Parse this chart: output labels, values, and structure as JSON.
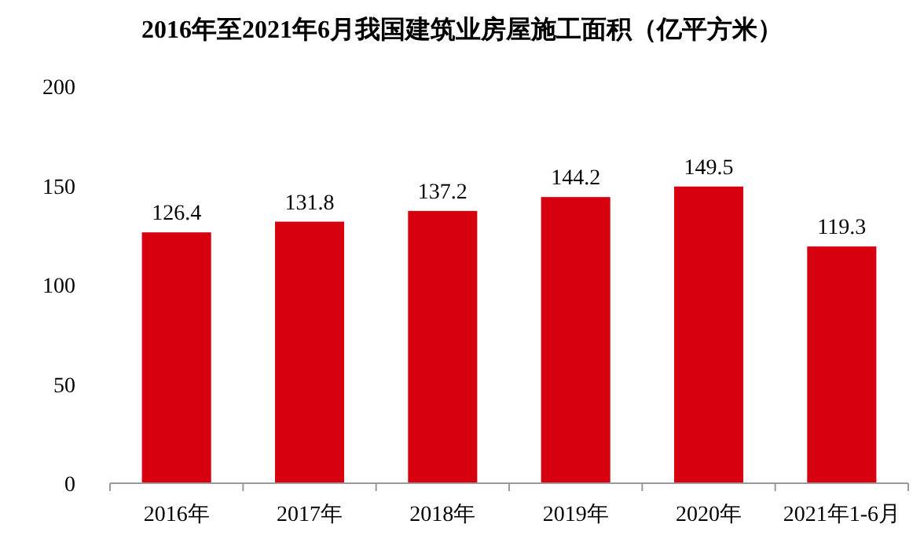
{
  "chart_data": {
    "type": "bar",
    "title": "2016年至2021年6月我国建筑业房屋施工面积（亿平方米）",
    "categories": [
      "2016年",
      "2017年",
      "2018年",
      "2019年",
      "2020年",
      "2021年1-6月"
    ],
    "values": [
      126.4,
      131.8,
      137.2,
      144.2,
      149.5,
      119.3
    ],
    "color": "#d7000f",
    "ylim": [
      0,
      200
    ],
    "yticks": [
      0,
      50,
      100,
      150,
      200
    ],
    "data_labels": true
  }
}
